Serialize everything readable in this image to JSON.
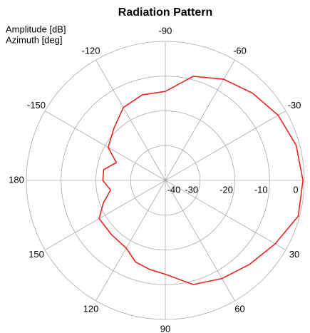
{
  "chart_data": {
    "type": "polar",
    "title": "Radiation Pattern",
    "radial_label": "Amplitude [dB]",
    "angular_label": "Azimuth [deg]",
    "x": [
      -180,
      -170,
      -160,
      -150,
      -135,
      -120,
      -105,
      -90,
      -75,
      -60,
      -45,
      -30,
      -15,
      0,
      15,
      30,
      45,
      60,
      75,
      90,
      100,
      110,
      120,
      135,
      150,
      160,
      170
    ],
    "series": [
      {
        "name": "Amplitude",
        "color": "#e8251f",
        "values": [
          -22,
          -22,
          -25,
          -21,
          -19,
          -15.8,
          -14.5,
          -14.4,
          -9,
          -6.4,
          -4.5,
          -2.5,
          -1,
          -0.4,
          -0.4,
          -3.5,
          -5.8,
          -7.4,
          -9,
          -13,
          -14,
          -15,
          -17.5,
          -18,
          -18,
          -21,
          -24
        ]
      }
    ],
    "rlim": [
      -40,
      0
    ],
    "rticks": [
      -40,
      -30,
      -20,
      -10,
      0
    ],
    "xticks": [
      0,
      30,
      60,
      90,
      120,
      150,
      180,
      -150,
      -120,
      -90,
      -60,
      -30
    ],
    "grid": true
  }
}
